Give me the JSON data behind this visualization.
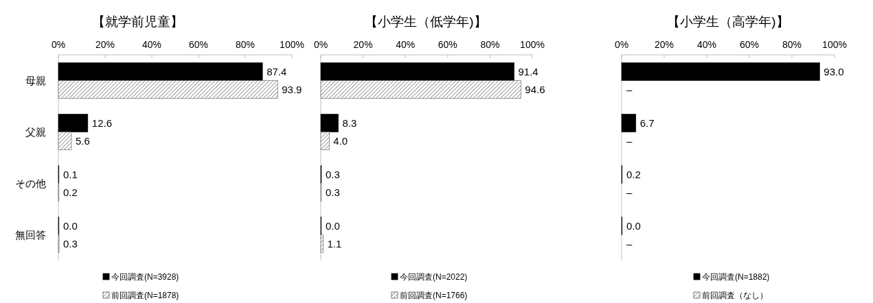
{
  "chart_data": [
    {
      "type": "bar",
      "orientation": "horizontal",
      "title": "【就学前児童】",
      "categories": [
        "母親",
        "父親",
        "その他",
        "無回答"
      ],
      "xlim": [
        0,
        100
      ],
      "xticks": [
        {
          "value": 0,
          "label": "0%"
        },
        {
          "value": 20,
          "label": "20%"
        },
        {
          "value": 40,
          "label": "40%"
        },
        {
          "value": 60,
          "label": "60%"
        },
        {
          "value": 80,
          "label": "80%"
        },
        {
          "value": 100,
          "label": "100%"
        }
      ],
      "legend": "bottom",
      "series": [
        {
          "name": "今回調査(N=3928)",
          "color": "#000000",
          "values": [
            87.4,
            12.6,
            0.1,
            0.0
          ],
          "value_labels": [
            "87.4",
            "12.6",
            "0.1",
            "0.0"
          ]
        },
        {
          "name": "前回調査(N=1878)",
          "color": "#595959",
          "values": [
            93.9,
            5.6,
            0.2,
            0.3
          ],
          "value_labels": [
            "93.9",
            "5.6",
            "0.2",
            "0.3"
          ]
        }
      ]
    },
    {
      "type": "bar",
      "orientation": "horizontal",
      "title": "【小学生（低学年)】",
      "categories": [
        null,
        null,
        null,
        null
      ],
      "tick_labels": "x",
      "xlim": [
        0,
        100
      ],
      "xticks": [
        {
          "value": 0,
          "label": "0%"
        },
        {
          "value": 20,
          "label": "20%"
        },
        {
          "value": 40,
          "label": "40%"
        },
        {
          "value": 60,
          "label": "60%"
        },
        {
          "value": 80,
          "label": "80%"
        },
        {
          "value": 100,
          "label": "100%"
        }
      ],
      "legend": "bottom",
      "series": [
        {
          "name": "今回調査(N=2022)",
          "color": "#000000",
          "values": [
            91.4,
            8.3,
            0.3,
            0.0
          ],
          "value_labels": [
            "91.4",
            "8.3",
            "0.3",
            "0.0"
          ]
        },
        {
          "name": "前回調査(N=1766)",
          "color": "#595959",
          "values": [
            94.6,
            4.0,
            0.3,
            1.1
          ],
          "value_labels": [
            "94.6",
            "4.0",
            "0.3",
            "1.1"
          ]
        }
      ]
    },
    {
      "type": "bar",
      "orientation": "horizontal",
      "title": "【小学生（高学年)】",
      "categories": [
        null,
        null,
        null,
        null
      ],
      "tick_labels": "x",
      "xlim": [
        0,
        100
      ],
      "xticks": [
        {
          "value": 0,
          "label": "0%"
        },
        {
          "value": 20,
          "label": "20%"
        },
        {
          "value": 40,
          "label": "40%"
        },
        {
          "value": 60,
          "label": "60%"
        },
        {
          "value": 80,
          "label": "80%"
        },
        {
          "value": 100,
          "label": "100%"
        }
      ],
      "legend": "bottom",
      "series": [
        {
          "name": "今回調査(N=1882)",
          "color": "#000000",
          "values": [
            93.0,
            6.7,
            0.2,
            0.0
          ],
          "value_labels": [
            "93.0",
            "6.7",
            "0.2",
            "0.0"
          ]
        },
        {
          "name": "前回調査（なし）",
          "color": "#595959",
          "values": [
            null,
            null,
            null,
            null
          ],
          "value_labels": [
            "–",
            "–",
            "–",
            "–"
          ]
        }
      ]
    }
  ]
}
